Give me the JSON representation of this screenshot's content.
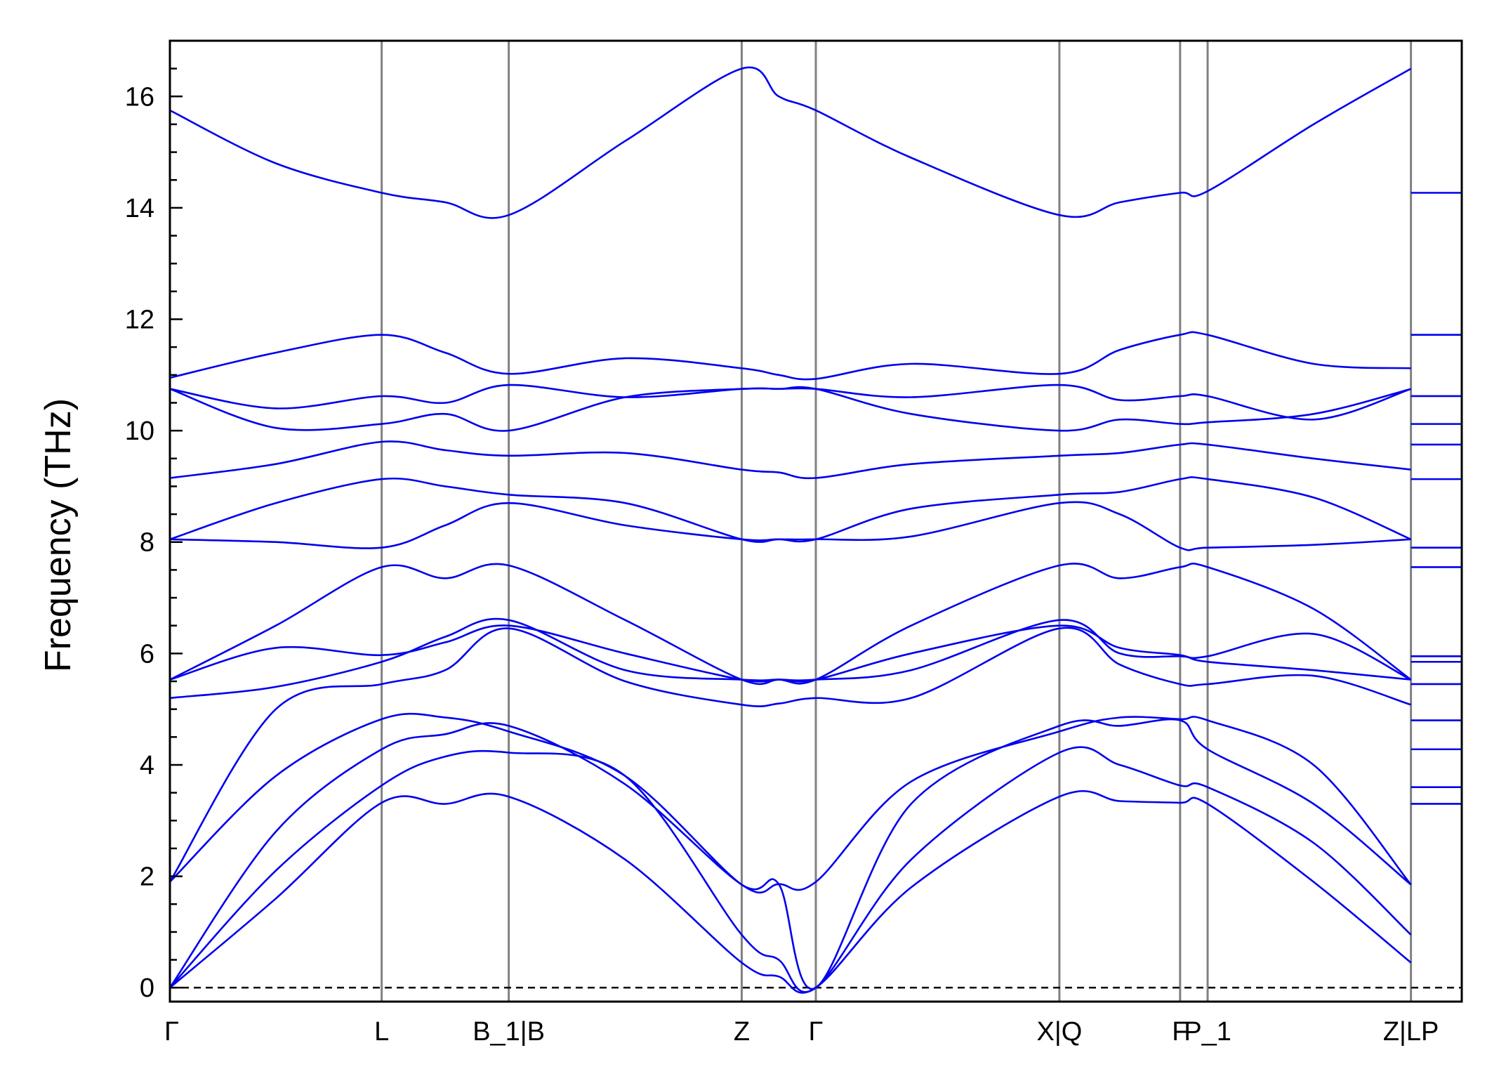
{
  "chart_data": {
    "type": "line",
    "title": "",
    "xlabel": "",
    "ylabel": "Frequency (THz)",
    "ylim": [
      -0.25,
      17.0
    ],
    "yticks": [
      0,
      2,
      4,
      6,
      8,
      10,
      12,
      14,
      16
    ],
    "grid": false,
    "legend": "none",
    "zero_line": {
      "value": 0,
      "style": "dashed",
      "color": "#000000"
    },
    "colors": {
      "bands": "#0000ee",
      "high_symmetry_lines": "#808080",
      "axes": "#000000"
    },
    "segments": [
      {
        "from": "Γ",
        "to": "L"
      },
      {
        "from": "L",
        "to": "B_1"
      },
      {
        "from": "B",
        "to": "Z"
      },
      {
        "from": "Z",
        "to": "Γ"
      },
      {
        "from": "Γ",
        "to": "X"
      },
      {
        "from": "Q",
        "to": "F"
      },
      {
        "from": "P_1",
        "to": "Z"
      },
      {
        "from": "L",
        "to": "P"
      }
    ],
    "x_ticks": [
      {
        "label": "Γ",
        "x": 0
      },
      {
        "label": "L",
        "x": 1
      },
      {
        "label": "B_1|B",
        "x": 1.6
      },
      {
        "label": "Z",
        "x": 2.7
      },
      {
        "label": "Γ",
        "x": 3.05
      },
      {
        "label": "X|Q",
        "x": 4.2
      },
      {
        "label": "F",
        "x": 4.77
      },
      {
        "label": "P_1",
        "x": 4.9
      },
      {
        "label": "Z|LP",
        "x": 5.86
      }
    ],
    "xlim": [
      0,
      6.1
    ],
    "x": [
      0,
      0.5,
      1,
      1.3,
      1.6,
      2.15,
      2.7,
      2.875,
      3.05,
      3.5,
      4.2,
      4.485,
      4.77,
      4.9,
      5.4,
      5.86
    ],
    "series": [
      {
        "values": [
          0,
          1.6,
          3.32,
          3.3,
          3.43,
          2.3,
          0.45,
          0.2,
          0,
          1.8,
          3.43,
          3.35,
          3.32,
          3.3,
          1.9,
          0.45
        ]
      },
      {
        "values": [
          0,
          2.1,
          3.63,
          4.15,
          4.22,
          3.8,
          0.95,
          0.5,
          0,
          2.3,
          4.22,
          4.0,
          3.63,
          3.6,
          2.6,
          0.95
        ]
      },
      {
        "values": [
          0,
          2.8,
          4.28,
          4.55,
          4.7,
          3.65,
          1.85,
          1.86,
          0,
          3.3,
          4.7,
          4.7,
          4.8,
          4.28,
          3.3,
          1.85
        ]
      },
      {
        "values": [
          1.9,
          3.8,
          4.82,
          4.85,
          4.6,
          3.8,
          1.85,
          1.86,
          1.9,
          3.7,
          4.6,
          4.85,
          4.82,
          4.8,
          4.0,
          1.85
        ]
      },
      {
        "values": [
          1.9,
          5.0,
          5.45,
          5.7,
          6.45,
          5.5,
          5.08,
          5.1,
          5.2,
          5.2,
          6.45,
          5.8,
          5.45,
          5.45,
          5.6,
          5.08
        ]
      },
      {
        "values": [
          5.2,
          5.4,
          5.85,
          6.3,
          6.6,
          5.7,
          5.53,
          5.53,
          5.53,
          5.7,
          6.6,
          6.0,
          5.95,
          5.95,
          6.35,
          5.53
        ]
      },
      {
        "values": [
          5.53,
          6.1,
          5.97,
          6.2,
          6.5,
          6.0,
          5.53,
          5.53,
          5.53,
          6.0,
          6.5,
          6.1,
          5.97,
          5.85,
          5.7,
          5.53
        ]
      },
      {
        "values": [
          5.53,
          6.5,
          7.55,
          7.35,
          7.58,
          6.6,
          5.53,
          5.53,
          5.53,
          6.5,
          7.58,
          7.35,
          7.55,
          7.55,
          6.8,
          5.53
        ]
      },
      {
        "values": [
          8.05,
          8.0,
          7.9,
          8.3,
          8.7,
          8.3,
          8.05,
          8.05,
          8.05,
          8.1,
          8.7,
          8.5,
          7.9,
          7.9,
          7.95,
          8.05
        ]
      },
      {
        "values": [
          8.05,
          8.7,
          9.13,
          9.0,
          8.85,
          8.7,
          8.05,
          8.05,
          8.05,
          8.6,
          8.85,
          8.9,
          9.13,
          9.13,
          8.8,
          8.05
        ]
      },
      {
        "values": [
          9.15,
          9.4,
          9.8,
          9.65,
          9.55,
          9.6,
          9.3,
          9.25,
          9.15,
          9.4,
          9.55,
          9.6,
          9.75,
          9.75,
          9.5,
          9.3
        ]
      },
      {
        "values": [
          10.75,
          10.05,
          10.12,
          10.3,
          10.0,
          10.6,
          10.75,
          10.75,
          10.75,
          10.3,
          10.0,
          10.2,
          10.12,
          10.15,
          10.3,
          10.75
        ]
      },
      {
        "values": [
          10.75,
          10.4,
          10.62,
          10.5,
          10.82,
          10.6,
          10.75,
          10.75,
          10.75,
          10.6,
          10.82,
          10.55,
          10.62,
          10.62,
          10.2,
          10.75
        ]
      },
      {
        "values": [
          10.95,
          11.4,
          11.72,
          11.4,
          11.02,
          11.3,
          11.12,
          11.0,
          10.93,
          11.2,
          11.02,
          11.45,
          11.72,
          11.72,
          11.2,
          11.12
        ]
      },
      {
        "values": [
          15.75,
          14.8,
          14.27,
          14.1,
          13.87,
          15.2,
          16.5,
          16.0,
          15.75,
          14.9,
          13.87,
          14.1,
          14.27,
          14.3,
          15.5,
          16.5
        ]
      }
    ],
    "lp_segment_levels": [
      3.3,
      3.6,
      4.28,
      4.8,
      5.45,
      5.85,
      5.95,
      7.55,
      7.9,
      9.13,
      9.75,
      10.12,
      10.62,
      11.72,
      14.27
    ]
  }
}
